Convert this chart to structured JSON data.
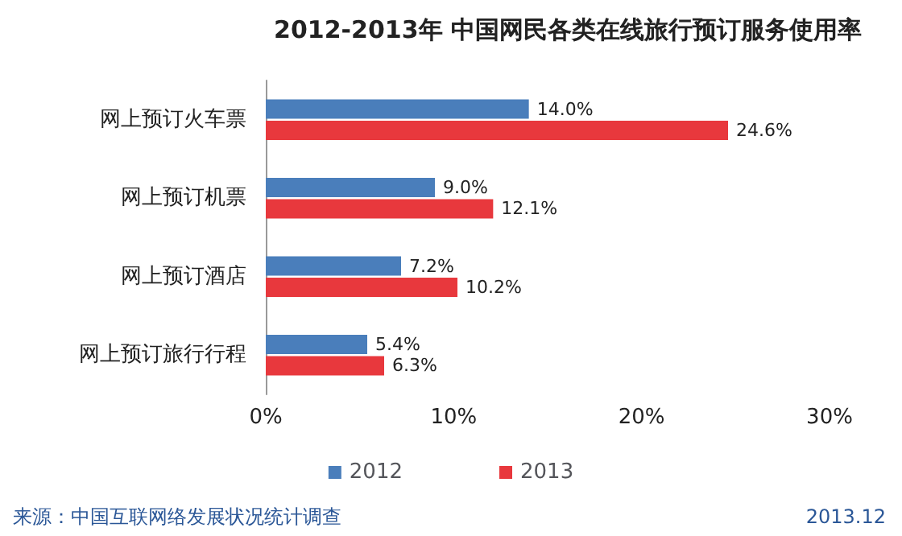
{
  "chart_data": {
    "type": "bar",
    "orientation": "horizontal",
    "title": "2012-2013年 中国网民各类在线旅行预订服务使用率",
    "categories": [
      "网上预订火车票",
      "网上预订机票",
      "网上预订酒店",
      "网上预订旅行行程"
    ],
    "series": [
      {
        "name": "2012",
        "color": "#4a7ebb",
        "values": [
          14.0,
          9.0,
          7.2,
          5.4
        ],
        "value_labels": [
          "14.0%",
          "9.0%",
          "7.2%",
          "5.4%"
        ]
      },
      {
        "name": "2013",
        "color": "#e8383d",
        "values": [
          24.6,
          12.1,
          10.2,
          6.3
        ],
        "value_labels": [
          "24.6%",
          "12.1%",
          "10.2%",
          "6.3%"
        ]
      }
    ],
    "xlim": [
      0,
      30
    ],
    "xticks": [
      {
        "value": 0,
        "label": "0%"
      },
      {
        "value": 10,
        "label": "10%"
      },
      {
        "value": 20,
        "label": "20%"
      },
      {
        "value": 30,
        "label": "30%"
      }
    ],
    "grid": false,
    "legend": "bottom",
    "annotations": [
      "来源：中国互联网络发展状况统计调查",
      "2013.12"
    ]
  }
}
